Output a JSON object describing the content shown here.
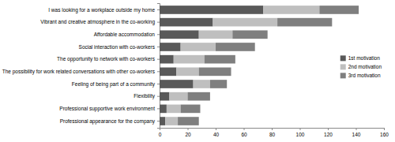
{
  "chart_data": {
    "type": "bar",
    "orientation": "horizontal",
    "stacked": true,
    "legend": "right",
    "categories": [
      "I was looking for a workplace outside my home",
      "Vibrant and creative atmosphere in the co-working",
      "Affordable accommodation",
      "Social interaction with co-workers",
      "The opportunity to network with co-workers",
      "The possibility for work related conversations with other co-workers",
      "Feeling of being part of a community",
      "Flexibility",
      "Professional supportive work environment",
      "Professional appearance for the company"
    ],
    "series": [
      {
        "name": "1st motivation",
        "color": "#595959",
        "values": [
          74,
          38,
          28,
          15,
          10,
          12,
          24,
          7,
          5,
          4
        ]
      },
      {
        "name": "2nd motivation",
        "color": "#bfbfbf",
        "values": [
          40,
          46,
          24,
          25,
          22,
          16,
          12,
          13,
          10,
          9
        ]
      },
      {
        "name": "3rd motivation",
        "color": "#7f7f7f",
        "values": [
          28,
          39,
          25,
          28,
          22,
          23,
          12,
          16,
          14,
          15
        ]
      }
    ],
    "xlim": [
      0,
      160
    ],
    "xticks": [
      0,
      20,
      40,
      60,
      80,
      100,
      120,
      140,
      160
    ]
  }
}
